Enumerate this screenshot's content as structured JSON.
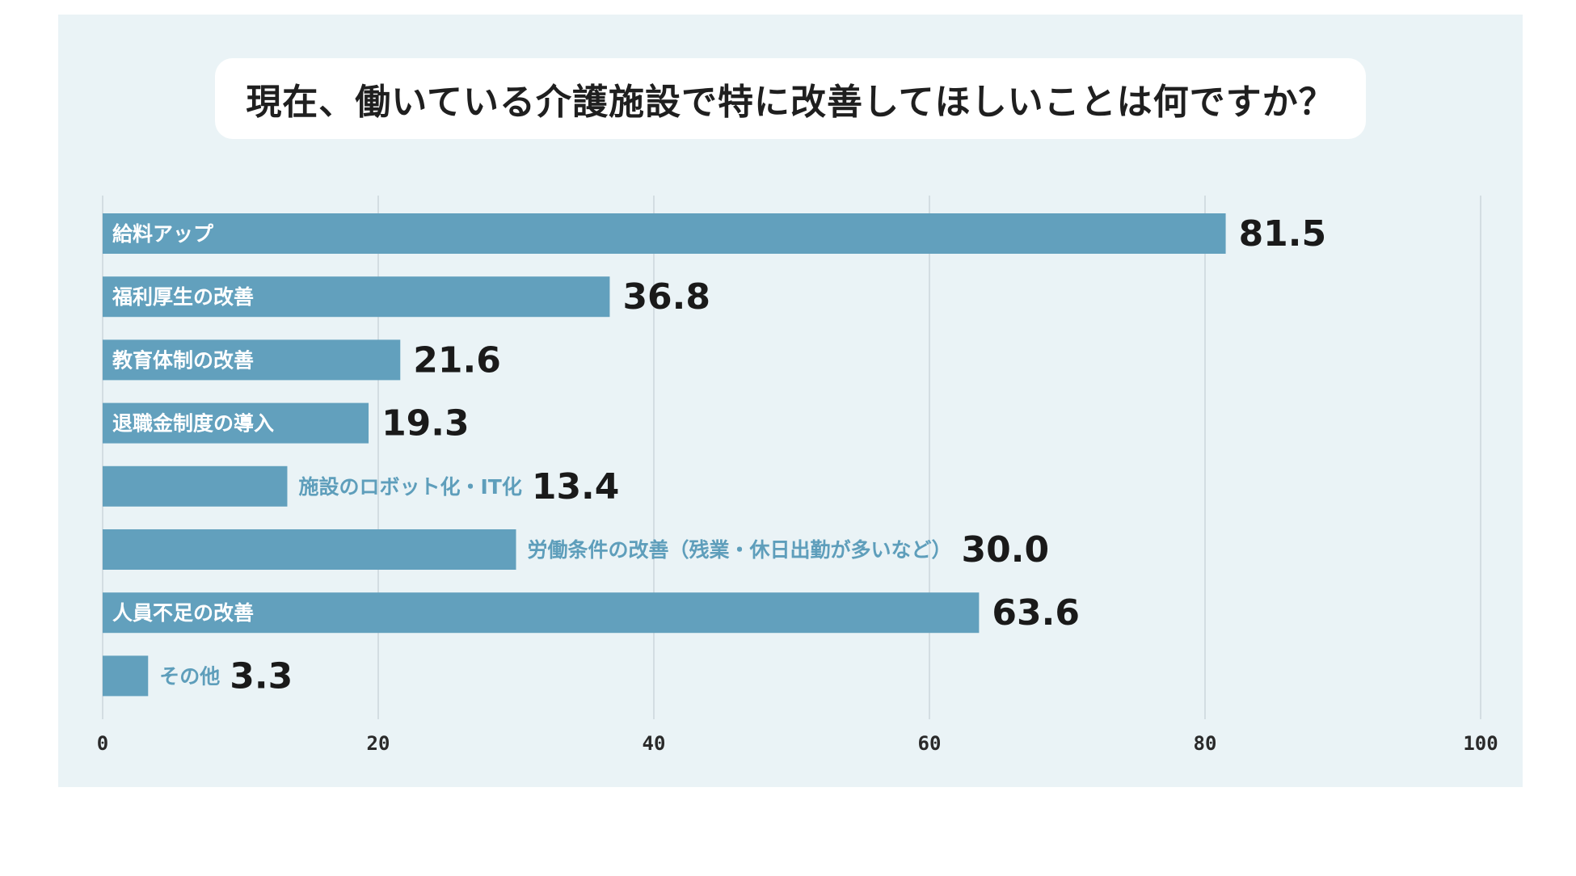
{
  "chart_data": {
    "type": "bar",
    "orientation": "horizontal",
    "title": "現在、働いている介護施設で特に改善してほしいことは何ですか？",
    "categories": [
      "給料アップ",
      "福利厚生の改善",
      "教育体制の改善",
      "退職金制度の導入",
      "施設のロボット化・IT化",
      "労働条件の改善（残業・休日出勤が多いなど）",
      "人員不足の改善",
      "その他"
    ],
    "values": [
      81.5,
      36.8,
      21.6,
      19.3,
      13.4,
      30.0,
      63.6,
      3.3
    ],
    "value_labels": [
      "81.5",
      "36.8",
      "21.6",
      "19.3",
      "13.4",
      "30.0",
      "63.6",
      "3.3"
    ],
    "label_inside": [
      true,
      true,
      true,
      true,
      false,
      false,
      true,
      false
    ],
    "xlim": [
      0,
      100
    ],
    "xticks": [
      "0",
      "20",
      "40",
      "60",
      "80",
      "100"
    ],
    "grid": true,
    "colors": {
      "bar": "#62a0bd",
      "background": "#eaf3f6",
      "grid": "#d3dde2",
      "outside_label": "#5e9ebb"
    }
  }
}
